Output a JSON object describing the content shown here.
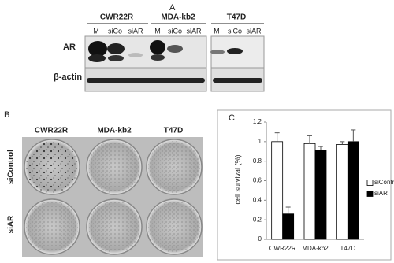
{
  "blot": {
    "panel": "A",
    "cell_lines": [
      "CWR22R",
      "MDA-kb2",
      "T47D"
    ],
    "lanes": [
      [
        "M",
        "siCo",
        "siAR"
      ],
      [
        "M",
        "siCo",
        "siAR"
      ],
      [
        "M",
        "siCo",
        "siAR"
      ]
    ],
    "rows": [
      "AR",
      "β-actin"
    ]
  },
  "plates": {
    "panel": "B",
    "cell_lines": [
      "CWR22R",
      "MDA-kb2",
      "T47D"
    ],
    "rows": [
      "siControl",
      "siAR"
    ]
  },
  "chart_data": {
    "type": "bar",
    "panel": "C",
    "y_label": "cell survival (%)",
    "categories": [
      "CWR22R",
      "MDA-kb2",
      "T47D"
    ],
    "series": [
      {
        "name": "siControl",
        "color": "#ffffff",
        "values": [
          1.0,
          0.98,
          0.97
        ],
        "errors": [
          0.09,
          0.08,
          0.03
        ]
      },
      {
        "name": "siAR",
        "color": "#000000",
        "values": [
          0.26,
          0.91,
          1.0
        ],
        "errors": [
          0.07,
          0.04,
          0.12
        ]
      }
    ],
    "ylim": [
      0,
      1.2
    ],
    "yticks": [
      0,
      0.2,
      0.4,
      0.6,
      0.8,
      1,
      1.2
    ],
    "grid": false,
    "legend": "right"
  }
}
